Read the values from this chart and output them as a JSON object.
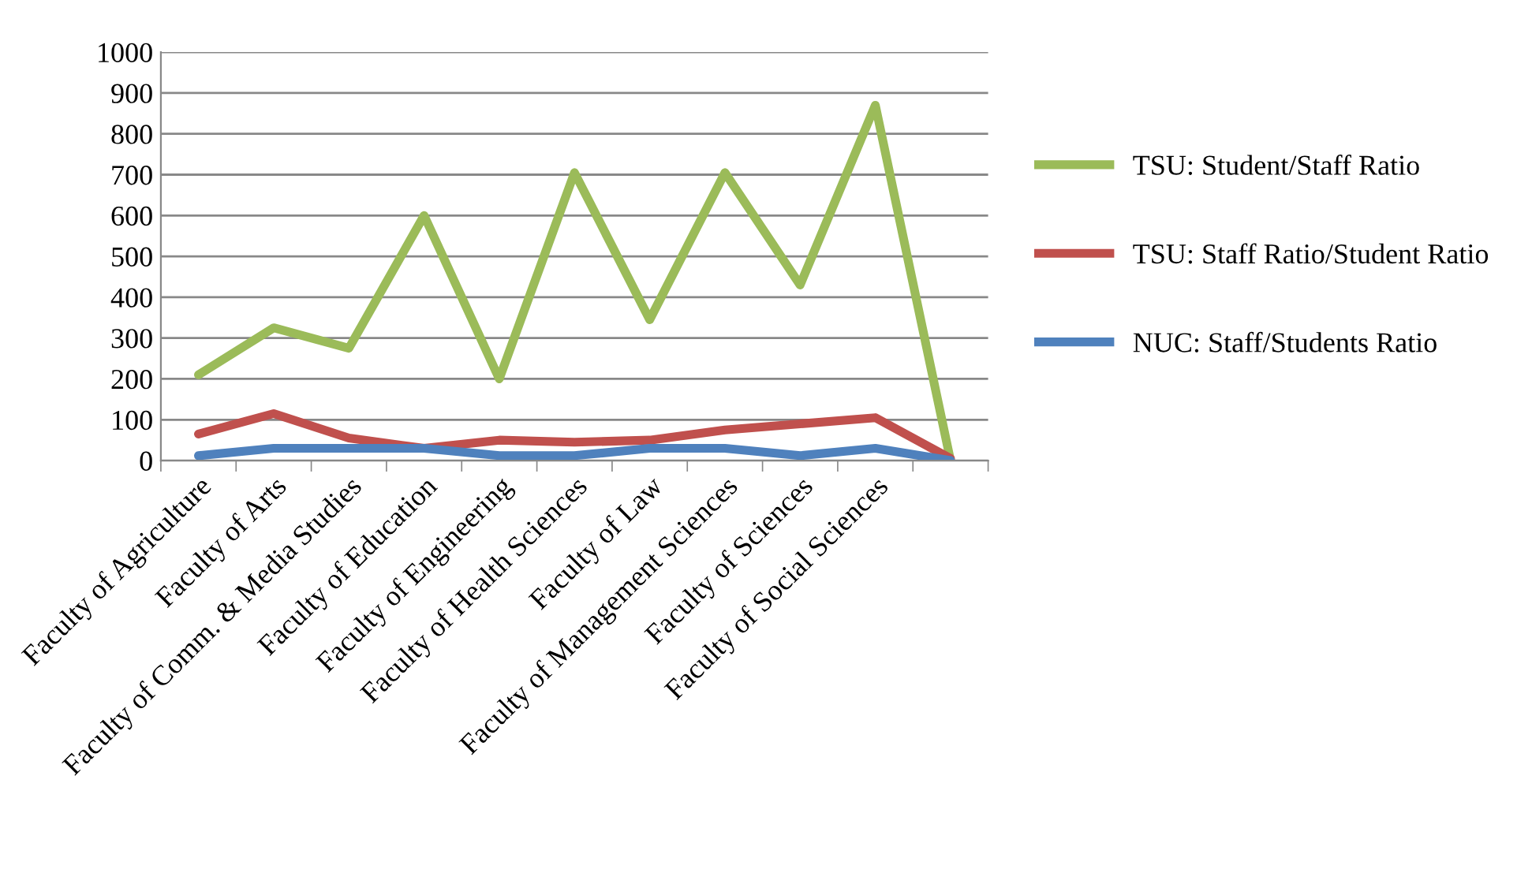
{
  "chart_data": {
    "type": "line",
    "categories": [
      "Faculty of Agriculture",
      "Faculty of Arts",
      "Faculty of Comm. & Media Studies",
      "Faculty of Education",
      "Faculty of Engineering",
      "Faculty of Health Sciences",
      "Faculty of Law",
      "Faculty of Management Sciences",
      "Faculty of Sciences",
      "Faculty of Social Sciences",
      null
    ],
    "series": [
      {
        "name": "TSU: Student/Staff Ratio",
        "color": "#9bbb59",
        "values": [
          210,
          325,
          275,
          600,
          200,
          705,
          345,
          705,
          430,
          870,
          0
        ]
      },
      {
        "name": "TSU: Staff Ratio/Student Ratio",
        "color": "#c0504d",
        "values": [
          65,
          115,
          55,
          30,
          50,
          45,
          50,
          75,
          90,
          105,
          5
        ]
      },
      {
        "name": "NUC: Staff/Students Ratio",
        "color": "#4f81bd",
        "values": [
          12,
          30,
          30,
          30,
          12,
          12,
          30,
          30,
          12,
          30,
          0
        ]
      }
    ],
    "ylim": [
      0,
      1000
    ],
    "yticks": [
      0,
      100,
      200,
      300,
      400,
      500,
      600,
      700,
      800,
      900,
      1000
    ],
    "grid": "y",
    "legend": "right",
    "marker": "none",
    "line_style": "solid"
  }
}
